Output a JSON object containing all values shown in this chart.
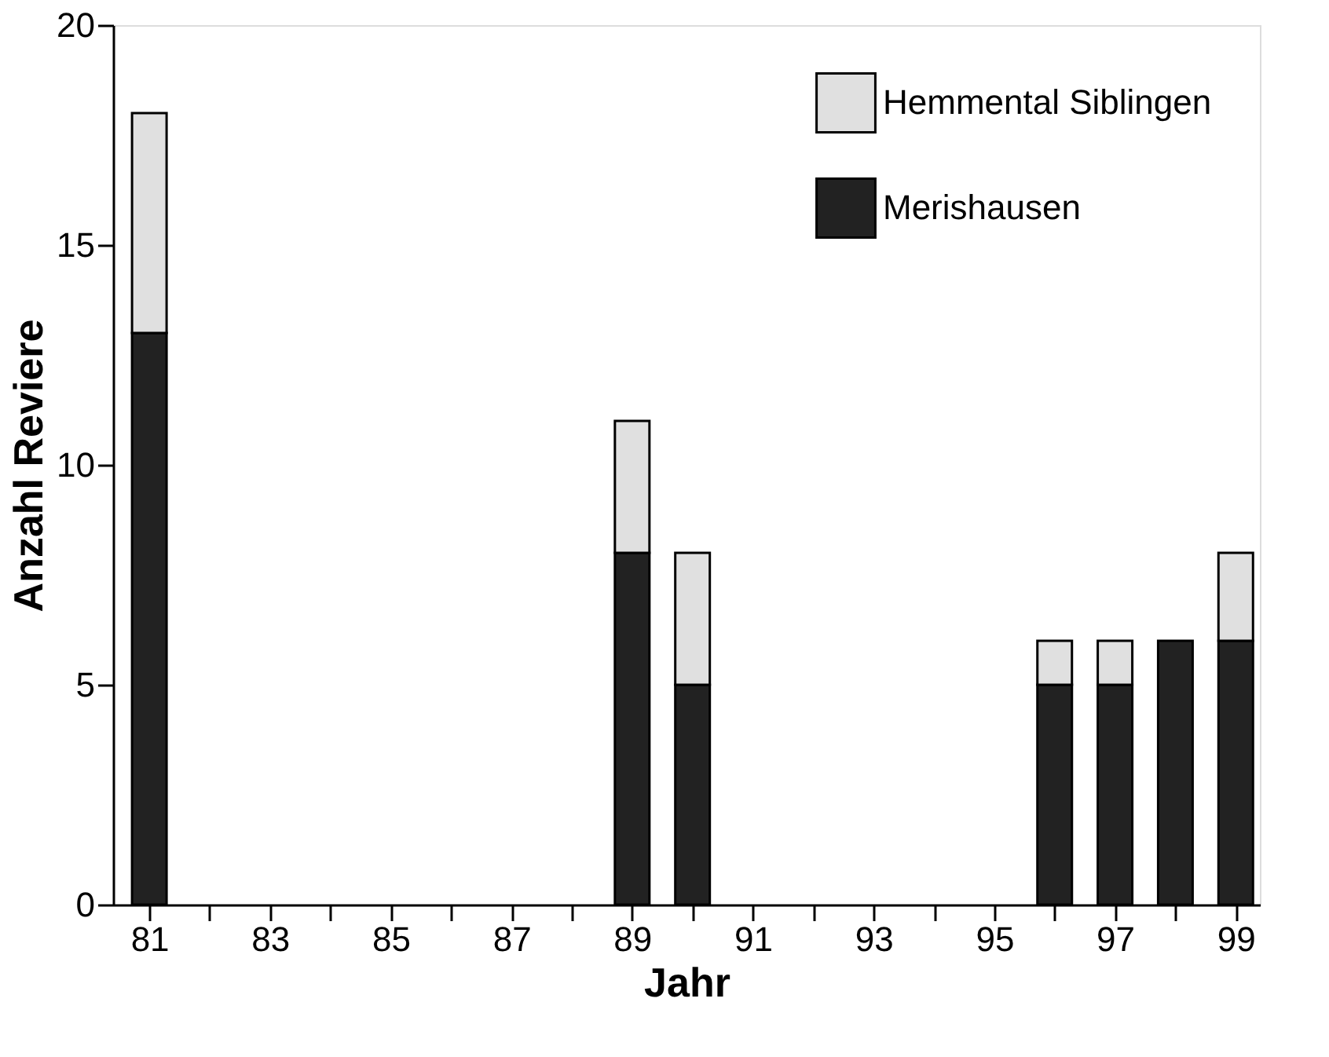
{
  "chart_data": {
    "type": "bar",
    "stacked": true,
    "xlabel": "Jahr",
    "ylabel": "Anzahl Reviere",
    "x": [
      81,
      89,
      90,
      96,
      97,
      98,
      99
    ],
    "series": [
      {
        "name": "Merishausen",
        "color": "#222222",
        "values": [
          13,
          8,
          5,
          5,
          5,
          6,
          6
        ]
      },
      {
        "name": "Hemmental Siblingen",
        "color": "#e0e0e0",
        "values": [
          5,
          3,
          3,
          1,
          1,
          null,
          2
        ]
      }
    ],
    "xlim": [
      80.4,
      99.4
    ],
    "xticks": [
      81,
      {
        "value": 82,
        "label": null
      },
      83,
      {
        "value": 84,
        "label": null
      },
      85,
      {
        "value": 86,
        "label": null
      },
      87,
      {
        "value": 88,
        "label": null
      },
      89,
      {
        "value": 90,
        "label": null
      },
      91,
      {
        "value": 92,
        "label": null
      },
      93,
      {
        "value": 94,
        "label": null
      },
      95,
      {
        "value": 96,
        "label": null
      },
      97,
      {
        "value": 98,
        "label": null
      },
      99
    ],
    "ylim": [
      0,
      20
    ],
    "yticks": [
      0,
      5,
      10,
      15,
      20
    ],
    "grid": false,
    "legend": "top right"
  }
}
